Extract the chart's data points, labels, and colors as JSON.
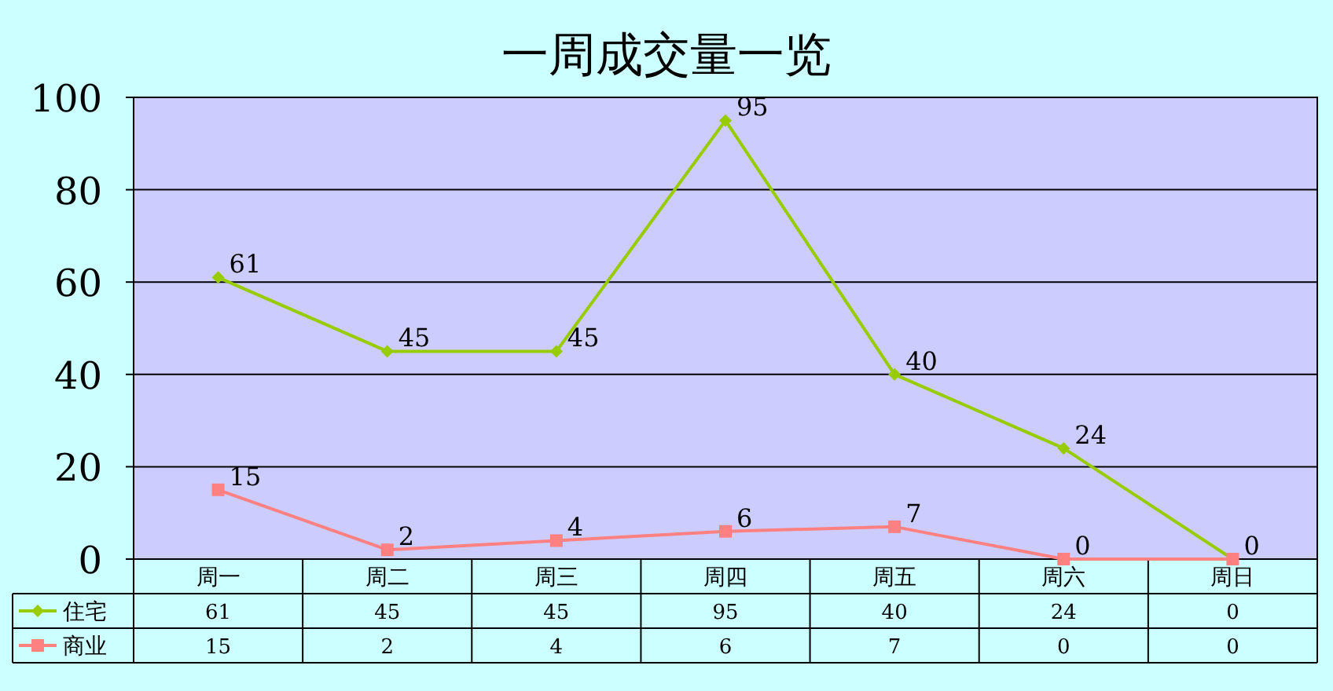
{
  "chart_data": {
    "type": "line",
    "title": "一周成交量一览",
    "categories": [
      "周一",
      "周二",
      "周三",
      "周四",
      "周五",
      "周六",
      "周日"
    ],
    "series": [
      {
        "name": "住宅",
        "color": "#99cc00",
        "marker": "diamond",
        "values": [
          61,
          45,
          45,
          95,
          40,
          24,
          0
        ]
      },
      {
        "name": "商业",
        "color": "#ff8080",
        "marker": "square",
        "values": [
          15,
          2,
          4,
          6,
          7,
          0,
          0
        ]
      }
    ],
    "annotations": [
      {
        "text": "61",
        "x": "周一",
        "y": 61
      },
      {
        "text": "45",
        "x": "周二",
        "y": 45
      },
      {
        "text": "45",
        "x": "周三",
        "y": 45
      },
      {
        "text": "95",
        "x": "周四",
        "y": 95
      },
      {
        "text": "40",
        "x": "周五",
        "y": 40
      },
      {
        "text": "24",
        "x": "周六",
        "y": 24
      },
      {
        "text": "0",
        "x": "周日",
        "y": 0
      },
      {
        "text": "15",
        "x": "周一",
        "y": 15
      },
      {
        "text": "2",
        "x": "周二",
        "y": 2
      },
      {
        "text": "4",
        "x": "周三",
        "y": 4
      },
      {
        "text": "6",
        "x": "周四",
        "y": 6
      },
      {
        "text": "7",
        "x": "周五",
        "y": 7
      },
      {
        "text": "0",
        "x": "周六",
        "y": 0
      }
    ],
    "ylim": [
      0,
      100
    ],
    "yticks": [
      0,
      20,
      40,
      60,
      80,
      100
    ],
    "grid": "y",
    "data_labels": true,
    "legend": "bottom left"
  }
}
